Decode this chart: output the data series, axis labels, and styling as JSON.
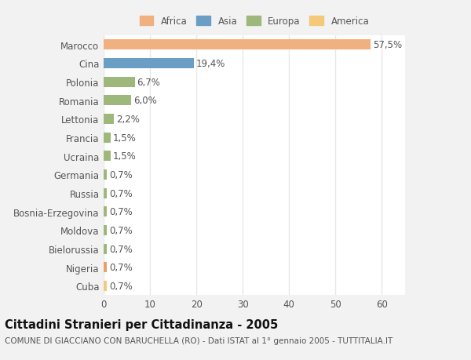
{
  "categories": [
    "Cuba",
    "Nigeria",
    "Bielorussia",
    "Moldova",
    "Bosnia-Erzegovina",
    "Russia",
    "Germania",
    "Ucraina",
    "Francia",
    "Lettonia",
    "Romania",
    "Polonia",
    "Cina",
    "Marocco"
  ],
  "values": [
    0.7,
    0.7,
    0.7,
    0.7,
    0.7,
    0.7,
    0.7,
    1.5,
    1.5,
    2.2,
    6.0,
    6.7,
    19.4,
    57.5
  ],
  "labels": [
    "0,7%",
    "0,7%",
    "0,7%",
    "0,7%",
    "0,7%",
    "0,7%",
    "0,7%",
    "1,5%",
    "1,5%",
    "2,2%",
    "6,0%",
    "6,7%",
    "19,4%",
    "57,5%"
  ],
  "colors": [
    "#f5c97a",
    "#e8a06a",
    "#9db87a",
    "#9db87a",
    "#9db87a",
    "#9db87a",
    "#9db87a",
    "#9db87a",
    "#9db87a",
    "#9db87a",
    "#9db87a",
    "#9db87a",
    "#6a9ec5",
    "#f0b080"
  ],
  "legend_labels": [
    "Africa",
    "Asia",
    "Europa",
    "America"
  ],
  "legend_colors": [
    "#f0b080",
    "#6a9ec5",
    "#9db87a",
    "#f5c97a"
  ],
  "title_bold": "Cittadini Stranieri per Cittadinanza - 2005",
  "subtitle": "COMUNE DI GIACCIANO CON BARUCHELLA (RO) - Dati ISTAT al 1° gennaio 2005 - TUTTITALIA.IT",
  "xlim": [
    0,
    65
  ],
  "xticks": [
    0,
    10,
    20,
    30,
    40,
    50,
    60
  ],
  "background_color": "#f2f2f2",
  "bar_background": "#ffffff",
  "grid_color": "#e8e8e8",
  "text_color": "#555555",
  "label_fontsize": 8.5,
  "tick_fontsize": 8.5,
  "title_fontsize": 10.5,
  "subtitle_fontsize": 7.5
}
